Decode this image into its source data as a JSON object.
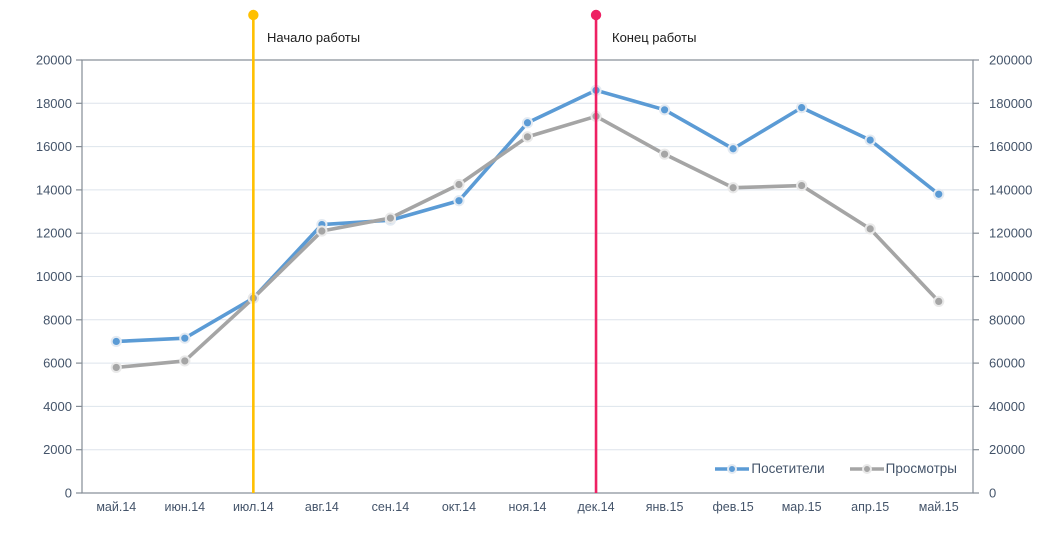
{
  "chart_data": {
    "type": "line",
    "categories": [
      "май.14",
      "июн.14",
      "июл.14",
      "авг.14",
      "сен.14",
      "окт.14",
      "ноя.14",
      "дек.14",
      "янв.15",
      "фев.15",
      "мар.15",
      "апр.15",
      "май.15"
    ],
    "series": [
      {
        "name": "Посетители",
        "axis": "left",
        "color": "#5B9BD5",
        "marker_ring": "#E3EAF2",
        "values": [
          7000,
          7150,
          9000,
          12400,
          12600,
          13500,
          17100,
          18600,
          17700,
          15900,
          17800,
          16300,
          13800
        ]
      },
      {
        "name": "Просмотры",
        "axis": "right",
        "color": "#A5A5A5",
        "marker_ring": "#E9E9E9",
        "values": [
          58000,
          61000,
          90000,
          121000,
          127000,
          142500,
          164500,
          174000,
          156500,
          141000,
          142000,
          122000,
          88500
        ]
      }
    ],
    "y_axis_left": {
      "min": 0,
      "max": 20000,
      "step": 2000,
      "ticks": [
        "0",
        "2000",
        "4000",
        "6000",
        "8000",
        "10000",
        "12000",
        "14000",
        "16000",
        "18000",
        "20000"
      ]
    },
    "y_axis_right": {
      "min": 0,
      "max": 200000,
      "step": 20000,
      "ticks": [
        "0",
        "20000",
        "40000",
        "60000",
        "80000",
        "100000",
        "120000",
        "140000",
        "160000",
        "180000",
        "200000"
      ]
    },
    "annotations": [
      {
        "label": "Начало работы",
        "category_index": 2,
        "color": "#FFC000"
      },
      {
        "label": "Конец работы",
        "category_index": 7,
        "color": "#EE2163"
      }
    ],
    "legend": {
      "position": "bottom-right"
    },
    "grid": true
  },
  "styles": {
    "axis_text_color": "#44546A",
    "grid_color": "#DDE4EC",
    "border_color": "#848C95",
    "annotation_text_color": "#1A1A1A",
    "background": "#FFFFFF"
  }
}
